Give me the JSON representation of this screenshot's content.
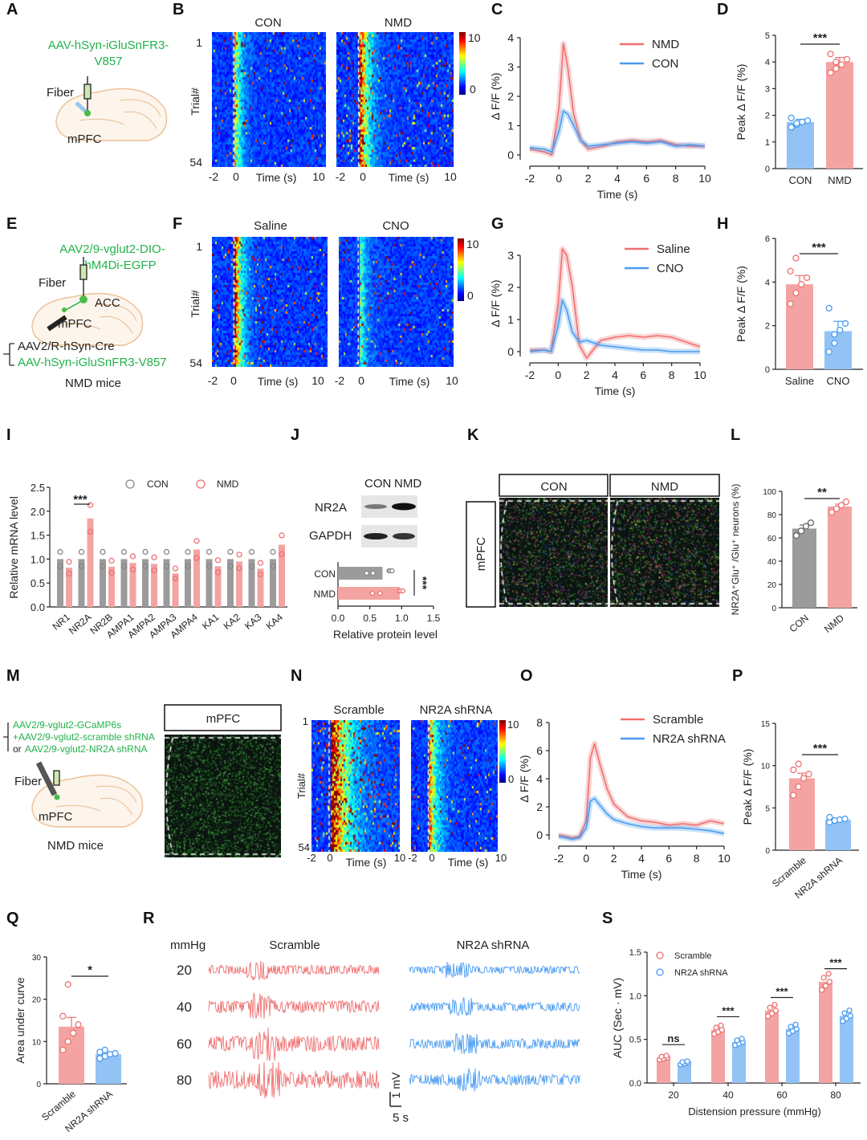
{
  "letters": [
    "A",
    "B",
    "C",
    "D",
    "E",
    "F",
    "G",
    "H",
    "I",
    "J",
    "K",
    "L",
    "M",
    "N",
    "O",
    "P",
    "Q",
    "R",
    "S"
  ],
  "A": {
    "virus1": "AAV-hSyn-iGluSnFR3-",
    "virus2": "V857",
    "fiber": "Fiber",
    "region": "mPFC"
  },
  "B": {
    "titles": [
      "CON",
      "NMD"
    ],
    "ylabel": "Trial#",
    "yticks": [
      "1",
      "54"
    ],
    "xticks": [
      "-2",
      "0",
      "10"
    ],
    "xlabel": "Time (s)",
    "colorbar": [
      "10",
      "0"
    ]
  },
  "E": {
    "virus1": "AAV2/9-vglut2-DIO-",
    "virus2": "hM4Di-EGFP",
    "fiber": "Fiber",
    "acc": "ACC",
    "region": "mPFC",
    "virus3": "AAV2/R-hSyn-Cre",
    "virus4": "AAV-hSyn-iGluSnFR3-V857",
    "mice": "NMD mice"
  },
  "F": {
    "titles": [
      "Saline",
      "CNO"
    ],
    "ylabel": "Trial#",
    "yticks": [
      "1",
      "54"
    ],
    "xticks": [
      "-2",
      "0",
      "10"
    ],
    "xlabel": "Time (s)",
    "colorbar": [
      "10",
      "0"
    ]
  },
  "J": {
    "columns": [
      "CON",
      "NMD"
    ],
    "rows": [
      "NR2A",
      "GAPDH"
    ]
  },
  "K": {
    "columns": [
      "CON",
      "NMD"
    ],
    "row": "mPFC"
  },
  "M": {
    "virus1": "AAV2/9-vglut2-GCaMP6s",
    "virus2": "+AAV2/9-vglut2-scramble shRNA",
    "virus3_prefix": "or ",
    "virus3": "AAV2/9-vglut2-NR2A shRNA",
    "fiber": "Fiber",
    "region": "mPFC",
    "mice": "NMD mice",
    "image_title": "mPFC",
    "image_label": "Fiber"
  },
  "N": {
    "titles": [
      "Scramble",
      "NR2A shRNA"
    ],
    "ylabel": "Trial#",
    "yticks": [
      "1",
      "54"
    ],
    "xticks": [
      "-2",
      "0",
      "10",
      "-2",
      "0",
      "10"
    ],
    "xlabel": "Time (s)",
    "colorbar": [
      "10",
      "0"
    ]
  },
  "R": {
    "unit": "mmHg",
    "columns": [
      "Scramble",
      "NR2A shRNA"
    ],
    "pressures": [
      "20",
      "40",
      "60",
      "80"
    ],
    "scale_v": "1 mV",
    "scale_t": "5 s"
  },
  "colors": {
    "pink": "#f4a3a3",
    "pink_dark": "#ef7070",
    "blue": "#93c3f5",
    "blue_dark": "#4b9cf0",
    "gray": "#9b9b9b",
    "green_text": "#22b14c"
  },
  "chart_data": [
    {
      "panel": "C",
      "type": "line",
      "xlabel": "Time (s)",
      "ylabel": "Δ F/F (%)",
      "xlim": [
        -2,
        10
      ],
      "ylim": [
        0,
        4
      ],
      "xticks": [
        "-2",
        "0",
        "2",
        "4",
        "6",
        "8",
        "10"
      ],
      "yticks": [
        "0",
        "1",
        "2",
        "3",
        "4"
      ],
      "x": [
        -2,
        -1,
        -0.5,
        0,
        0.3,
        0.6,
        1,
        1.5,
        2,
        3,
        4,
        5,
        6,
        7,
        8,
        9,
        10
      ],
      "series": [
        {
          "name": "NMD",
          "color": "#ef7070",
          "values": [
            0.2,
            0.1,
            0.0,
            1.6,
            3.8,
            3.0,
            1.4,
            0.5,
            0.2,
            0.3,
            0.45,
            0.5,
            0.45,
            0.5,
            0.35,
            0.3,
            0.3
          ]
        },
        {
          "name": "CON",
          "color": "#4b9cf0",
          "values": [
            0.25,
            0.2,
            0.1,
            0.8,
            1.5,
            1.4,
            1.0,
            0.5,
            0.3,
            0.35,
            0.4,
            0.45,
            0.4,
            0.45,
            0.3,
            0.35,
            0.3
          ]
        }
      ],
      "legend": "top-right"
    },
    {
      "panel": "D",
      "type": "bar",
      "ylabel": "Peak Δ F/F (%)",
      "ylim": [
        0,
        5
      ],
      "yticks": [
        "0",
        "1",
        "2",
        "3",
        "4",
        "5"
      ],
      "categories": [
        "CON",
        "NMD"
      ],
      "values": [
        1.75,
        4.0
      ],
      "errors": [
        0.1,
        0.17
      ],
      "points": [
        [
          1.55,
          1.65,
          1.75,
          1.8,
          1.9,
          1.7
        ],
        [
          3.6,
          3.75,
          3.9,
          4.1,
          4.3,
          4.0
        ]
      ],
      "significance": "***"
    },
    {
      "panel": "G",
      "type": "line",
      "xlabel": "Time (s)",
      "ylabel": "Δ F/F (%)",
      "xlim": [
        -2,
        10
      ],
      "ylim": [
        0,
        3
      ],
      "xticks": [
        "-2",
        "0",
        "2",
        "4",
        "6",
        "8",
        "10"
      ],
      "yticks": [
        "0",
        "1",
        "2",
        "3"
      ],
      "x": [
        -2,
        -1,
        -0.5,
        0,
        0.3,
        0.6,
        1,
        1.5,
        2,
        3,
        4,
        5,
        6,
        7,
        8,
        9,
        10
      ],
      "series": [
        {
          "name": "Saline",
          "color": "#ef7070",
          "values": [
            0.05,
            0.05,
            0.0,
            1.5,
            3.2,
            3.0,
            2.0,
            0.2,
            -0.2,
            0.35,
            0.45,
            0.5,
            0.45,
            0.5,
            0.45,
            0.3,
            0.15
          ]
        },
        {
          "name": "CNO",
          "color": "#4b9cf0",
          "values": [
            0.0,
            0.05,
            0.0,
            0.8,
            1.6,
            1.3,
            0.6,
            0.3,
            0.35,
            0.2,
            0.15,
            0.1,
            0.05,
            0.05,
            0.0,
            0.0,
            0.0
          ]
        }
      ],
      "legend": "top-right"
    },
    {
      "panel": "H",
      "type": "bar",
      "ylabel": "Peak Δ F/F (%)",
      "ylim": [
        0,
        6
      ],
      "yticks": [
        "0",
        "2",
        "4",
        "6"
      ],
      "categories": [
        "Saline",
        "CNO"
      ],
      "values": [
        3.9,
        1.75
      ],
      "errors": [
        0.4,
        0.45
      ],
      "points": [
        [
          3.0,
          3.5,
          3.9,
          4.2,
          4.5,
          5.1
        ],
        [
          0.8,
          1.2,
          1.8,
          2.1,
          2.8,
          1.6
        ]
      ],
      "significance": "***"
    },
    {
      "panel": "I",
      "type": "bar",
      "ylabel": "Relative mRNA level",
      "ylim": [
        0,
        2.5
      ],
      "yticks": [
        "0.0",
        "0.5",
        "1.0",
        "1.5",
        "2.0",
        "2.5"
      ],
      "categories": [
        "NR1",
        "NR2A",
        "NR2B",
        "AMPA1",
        "AMPA2",
        "AMPA3",
        "AMPA4",
        "KA1",
        "KA2",
        "KA3",
        "KA4"
      ],
      "series": [
        {
          "name": "CON",
          "color": "#9b9b9b",
          "values": [
            1.0,
            1.0,
            1.0,
            1.0,
            1.0,
            1.0,
            1.0,
            1.0,
            1.0,
            1.0,
            1.0
          ]
        },
        {
          "name": "NMD",
          "color": "#f4a3a3",
          "values": [
            0.82,
            1.85,
            0.84,
            0.92,
            0.9,
            0.7,
            1.2,
            0.85,
            0.95,
            0.8,
            1.3
          ]
        }
      ],
      "significance": {
        "NR2A": "***"
      },
      "legend": "top"
    },
    {
      "panel": "J",
      "type": "bar",
      "orientation": "horizontal",
      "xlabel": "Relative protein level",
      "xlim": [
        0,
        1.5
      ],
      "xticks": [
        "0.0",
        "0.5",
        "1.0",
        "1.5"
      ],
      "categories": [
        "CON",
        "NMD"
      ],
      "values": [
        0.7,
        0.97
      ],
      "significance": "***"
    },
    {
      "panel": "L",
      "type": "bar",
      "ylabel": "NR2A⁺Glu⁺ /Glu⁺ neurons (%)",
      "ylim": [
        0,
        100
      ],
      "yticks": [
        "0",
        "20",
        "40",
        "60",
        "80",
        "100"
      ],
      "categories": [
        "CON",
        "NMD"
      ],
      "values": [
        68,
        87
      ],
      "errors": [
        3,
        2
      ],
      "points": [
        [
          62,
          66,
          70,
          73
        ],
        [
          82,
          85,
          88,
          91
        ]
      ],
      "significance": "**"
    },
    {
      "panel": "O",
      "type": "line",
      "xlabel": "Time (s)",
      "ylabel": "Δ F/F (%)",
      "xlim": [
        -2,
        10
      ],
      "ylim": [
        0,
        8
      ],
      "xticks": [
        "-2",
        "0",
        "2",
        "4",
        "6",
        "8",
        "10"
      ],
      "yticks": [
        "0",
        "2",
        "4",
        "6",
        "8"
      ],
      "x": [
        -2,
        -1,
        -0.5,
        0,
        0.3,
        0.6,
        1,
        1.5,
        2,
        3,
        4,
        5,
        6,
        7,
        8,
        9,
        10
      ],
      "series": [
        {
          "name": "Scramble",
          "color": "#ef7070",
          "values": [
            0.0,
            -0.2,
            -0.1,
            1.0,
            5.5,
            6.5,
            5.0,
            3.3,
            2.2,
            1.3,
            1.0,
            0.9,
            0.7,
            0.8,
            0.7,
            1.0,
            0.8
          ]
        },
        {
          "name": "NR2A shRNA",
          "color": "#4b9cf0",
          "values": [
            -0.1,
            -0.3,
            -0.2,
            0.5,
            2.4,
            2.6,
            2.1,
            1.5,
            1.1,
            0.8,
            0.6,
            0.5,
            0.5,
            0.5,
            0.4,
            0.3,
            0.1
          ]
        }
      ],
      "legend": "top-right"
    },
    {
      "panel": "P",
      "type": "bar",
      "ylabel": "Peak Δ F/F (%)",
      "ylim": [
        0,
        15
      ],
      "yticks": [
        "0",
        "5",
        "10",
        "15"
      ],
      "categories": [
        "Scramble",
        "NR2A shRNA"
      ],
      "values": [
        8.5,
        3.6
      ],
      "errors": [
        0.6,
        0.15
      ],
      "points": [
        [
          6.5,
          7.5,
          8.5,
          9.0,
          9.5,
          10.2
        ],
        [
          3.3,
          3.5,
          3.6,
          3.7,
          3.9,
          3.5
        ]
      ],
      "significance": "***"
    },
    {
      "panel": "Q",
      "type": "bar",
      "ylabel": "Area under curve",
      "ylim": [
        0,
        30
      ],
      "yticks": [
        "0",
        "10",
        "20",
        "30"
      ],
      "categories": [
        "Scramble",
        "NR2A shRNA"
      ],
      "values": [
        13.5,
        7.0
      ],
      "errors": [
        2.2,
        0.4
      ],
      "points": [
        [
          8,
          10,
          12,
          14,
          16,
          23.5
        ],
        [
          6,
          6.5,
          7,
          7.2,
          7.5,
          8
        ]
      ],
      "significance": "*"
    },
    {
      "panel": "S",
      "type": "bar",
      "xlabel": "Distension pressure (mmHg)",
      "ylabel": "AUC (Sec · mV)",
      "ylim": [
        0,
        1.5
      ],
      "yticks": [
        "0.0",
        "0.5",
        "1.0",
        "1.5"
      ],
      "categories": [
        "20",
        "40",
        "60",
        "80"
      ],
      "series": [
        {
          "name": "Scramble",
          "color": "#f4a3a3",
          "values": [
            0.29,
            0.61,
            0.83,
            1.16
          ]
        },
        {
          "name": "NR2A shRNA",
          "color": "#93c3f5",
          "values": [
            0.23,
            0.47,
            0.62,
            0.77
          ]
        }
      ],
      "significance": [
        "ns",
        "***",
        "***",
        "***"
      ],
      "legend": "top-left"
    }
  ]
}
